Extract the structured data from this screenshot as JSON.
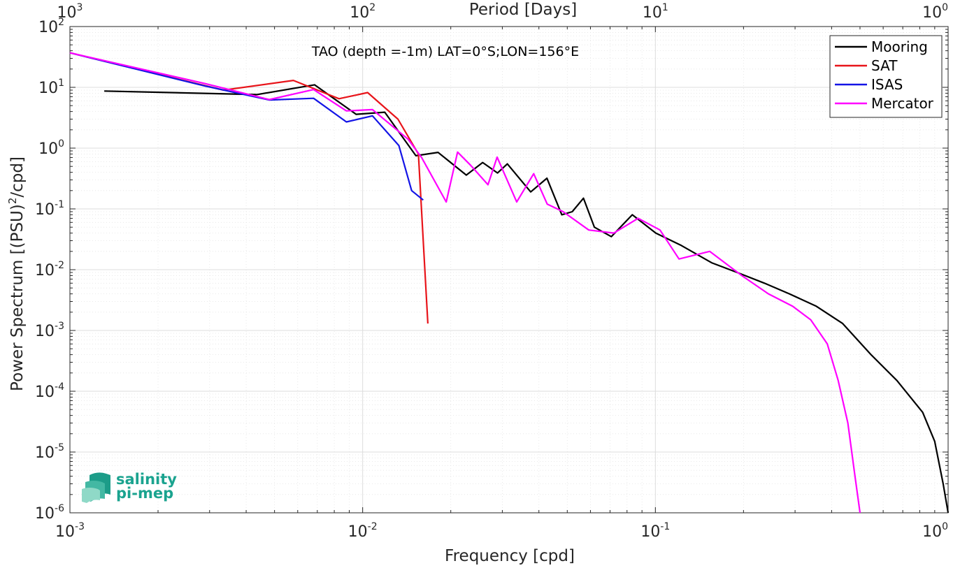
{
  "chart_data": {
    "type": "line",
    "title": "TAO (depth =-1m) LAT=0°S;LON=156°E",
    "xlabel": "Frequency [cpd]",
    "x2label": "Period [Days]",
    "ylabel_main": "Power Spectrum [(PSU)",
    "ylabel_sup": "2",
    "ylabel_tail": "/cpd]",
    "xscale": "log",
    "yscale": "log",
    "xlim": [
      0.001,
      1
    ],
    "ylim": [
      1e-06,
      100
    ],
    "grid": true,
    "legend_position": "top-right",
    "x_ticks": [
      {
        "base": "10",
        "exp": "-3"
      },
      {
        "base": "10",
        "exp": "-2"
      },
      {
        "base": "10",
        "exp": "-1"
      },
      {
        "base": "10",
        "exp": "0"
      }
    ],
    "x2_ticks": [
      {
        "base": "10",
        "exp": "3"
      },
      {
        "base": "10",
        "exp": "2"
      },
      {
        "base": "10",
        "exp": "1"
      },
      {
        "base": "10",
        "exp": "0"
      }
    ],
    "y_ticks": [
      {
        "base": "10",
        "exp": "2"
      },
      {
        "base": "10",
        "exp": "1"
      },
      {
        "base": "10",
        "exp": "0"
      },
      {
        "base": "10",
        "exp": "-1"
      },
      {
        "base": "10",
        "exp": "-2"
      },
      {
        "base": "10",
        "exp": "-3"
      },
      {
        "base": "10",
        "exp": "-4"
      },
      {
        "base": "10",
        "exp": "-5"
      },
      {
        "base": "10",
        "exp": "-6"
      }
    ],
    "series": [
      {
        "name": "Mooring",
        "color": "#000000",
        "x": [
          0.00131,
          0.00435,
          0.00685,
          0.0095,
          0.0119,
          0.0152,
          0.0181,
          0.0226,
          0.0257,
          0.0289,
          0.0312,
          0.0375,
          0.0426,
          0.0479,
          0.052,
          0.0568,
          0.0619,
          0.0707,
          0.0834,
          0.1003,
          0.1227,
          0.1557,
          0.1903,
          0.2356,
          0.287,
          0.3548,
          0.4363,
          0.5453,
          0.6687,
          0.8184,
          0.9,
          0.9617,
          1.0
        ],
        "y": [
          8.7,
          7.6,
          11.0,
          3.6,
          3.9,
          0.75,
          0.85,
          0.36,
          0.58,
          0.39,
          0.55,
          0.19,
          0.32,
          0.08,
          0.09,
          0.15,
          0.05,
          0.035,
          0.08,
          0.04,
          0.025,
          0.013,
          0.009,
          0.006,
          0.004,
          0.0025,
          0.0013,
          0.0004,
          0.00015,
          4.5e-05,
          1.5e-05,
          3e-06,
          1e-06
        ]
      },
      {
        "name": "SAT",
        "color": "#e8141a",
        "x": [
          0.001,
          0.00335,
          0.0058,
          0.0083,
          0.0104,
          0.0132,
          0.0155,
          0.0167
        ],
        "y": [
          37,
          9.0,
          13.0,
          6.5,
          8.2,
          3.0,
          0.8,
          0.0013
        ]
      },
      {
        "name": "ISAS",
        "color": "#1414e6",
        "x": [
          0.001,
          0.0029,
          0.0048,
          0.0068,
          0.0088,
          0.0108,
          0.0133,
          0.0147,
          0.0161
        ],
        "y": [
          37,
          10.5,
          6.2,
          6.6,
          2.7,
          3.4,
          1.1,
          0.2,
          0.14
        ]
      },
      {
        "name": "Mercator",
        "color": "#ff00ff",
        "x": [
          0.001,
          0.0029,
          0.0048,
          0.0068,
          0.0088,
          0.0108,
          0.0143,
          0.0159,
          0.0193,
          0.0211,
          0.0234,
          0.0268,
          0.0288,
          0.0336,
          0.0384,
          0.0427,
          0.0484,
          0.0592,
          0.0721,
          0.0873,
          0.1037,
          0.1204,
          0.1533,
          0.1972,
          0.2433,
          0.2945,
          0.3394,
          0.3867,
          0.4213,
          0.4545,
          0.4806,
          0.5
        ],
        "y": [
          37,
          11.5,
          6.3,
          9.2,
          4.1,
          4.3,
          1.4,
          0.7,
          0.13,
          0.86,
          0.52,
          0.25,
          0.71,
          0.13,
          0.38,
          0.12,
          0.09,
          0.045,
          0.04,
          0.07,
          0.045,
          0.015,
          0.02,
          0.008,
          0.004,
          0.0025,
          0.0015,
          0.0006,
          0.00015,
          3e-05,
          4e-06,
          1e-06
        ]
      }
    ]
  },
  "logo": {
    "line1": "salinity",
    "line2": "pi-mep"
  }
}
